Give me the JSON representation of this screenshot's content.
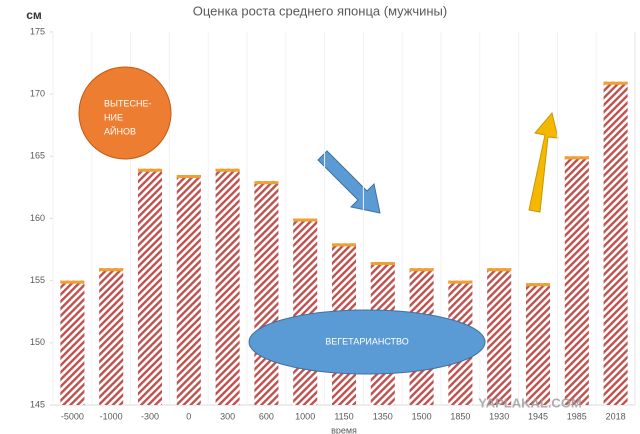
{
  "chart_data": {
    "type": "bar",
    "title": "Оценка роста среднего японца (мужчины)",
    "y_label": "см",
    "x_label": "время",
    "categories": [
      "-5000",
      "-1000",
      "-300",
      "0",
      "300",
      "600",
      "1000",
      "1150",
      "1350",
      "1500",
      "1850",
      "1930",
      "1945",
      "1985",
      "2018"
    ],
    "values": [
      155,
      156,
      164,
      163.5,
      164,
      163,
      160,
      158,
      156.5,
      156,
      155,
      156,
      154.8,
      165,
      171
    ],
    "color": "#c0504d",
    "cap_color": "#f0a030",
    "ylim": [
      145,
      175
    ],
    "yticks": [
      145,
      150,
      155,
      160,
      165,
      170,
      175
    ],
    "grid": false,
    "annotations": {
      "circle": {
        "lines": [
          "ВЫТЕСНЕ-",
          "НИЕ",
          "АЙНОВ"
        ],
        "color": "#ed7d31"
      },
      "ellipse": {
        "text": "ВЕГЕТАРИАНСТВО",
        "color": "#5b9bd5"
      }
    },
    "watermark": "YAPLAKAL.COM"
  }
}
